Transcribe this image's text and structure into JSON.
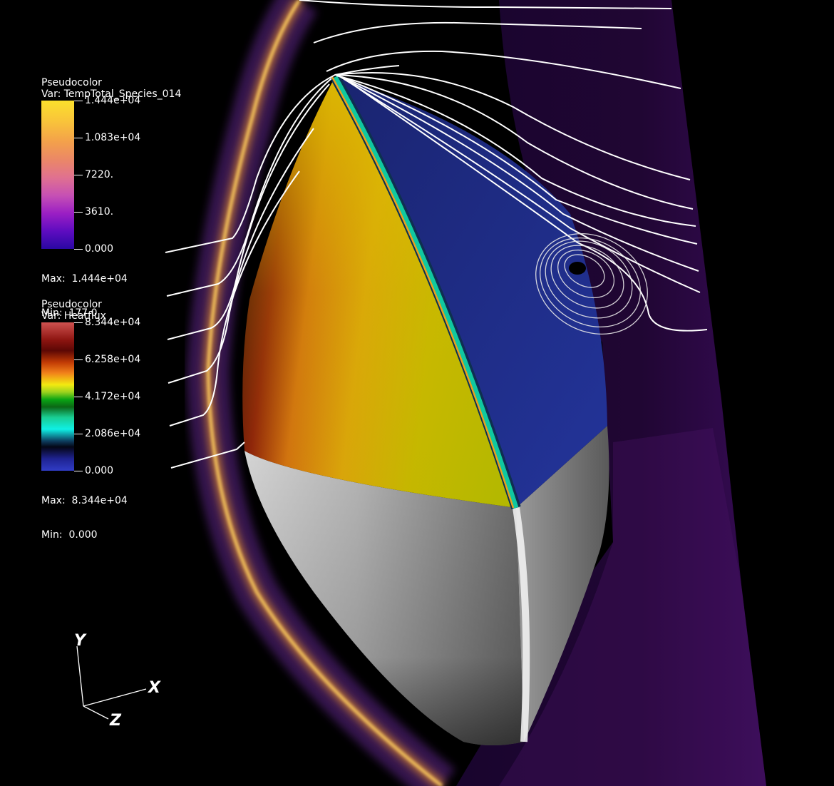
{
  "legends": [
    {
      "title": "Pseudocolor",
      "var": "Var: TempTotal_Species_014",
      "ticks": [
        "1.444e+04",
        "1.083e+04",
        "7220.",
        "3610.",
        "0.000"
      ],
      "max": "Max:  1.444e+04",
      "min": "Min:  177.0"
    },
    {
      "title": "Pseudocolor",
      "var": "Var: Heatflux",
      "ticks": [
        "8.344e+04",
        "6.258e+04",
        "4.172e+04",
        "2.086e+04",
        "0.000"
      ],
      "max": "Max:  8.344e+04",
      "min": "Min:  0.000"
    }
  ],
  "axes": {
    "x": "X",
    "y": "Y",
    "z": "Z"
  },
  "colors": {
    "background": "#000000",
    "shock_glow": "#f0a030",
    "streamline": "#ffffff",
    "surface_temp": "#c7b500",
    "surface_heat": "#1f2f8c",
    "surface_gray": "#a8a8a8"
  }
}
